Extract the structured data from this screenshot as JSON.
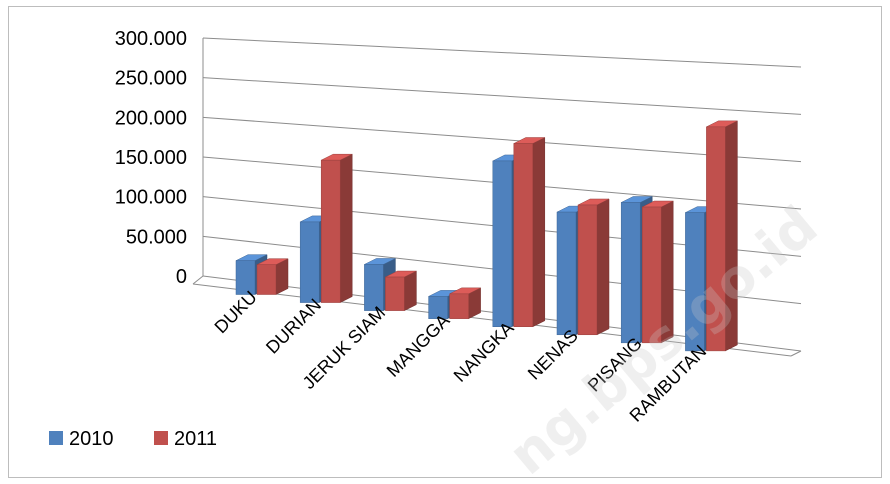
{
  "chart_data": {
    "type": "bar",
    "categories": [
      "DUKU",
      "DURIAN",
      "JERUK SIAM",
      "MANGGA",
      "NANGKA",
      "NENAS",
      "PISANG",
      "RAMBUTAN"
    ],
    "series": [
      {
        "name": "2010",
        "color": "#4f81bd",
        "values": [
          42000,
          98000,
          55000,
          26000,
          190000,
          138000,
          155000,
          150000
        ]
      },
      {
        "name": "2011",
        "color": "#c0504d",
        "values": [
          37000,
          173000,
          40000,
          29000,
          210000,
          146000,
          150000,
          243000
        ]
      }
    ],
    "y_tick_labels": [
      "0",
      "50.000",
      "100.000",
      "150.000",
      "200.000",
      "250.000",
      "300.000"
    ],
    "ylim": [
      0,
      300000
    ],
    "grid": true,
    "legend": "bottom-left",
    "view": "3d-perspective"
  },
  "watermark": "ng.bps.go.id"
}
